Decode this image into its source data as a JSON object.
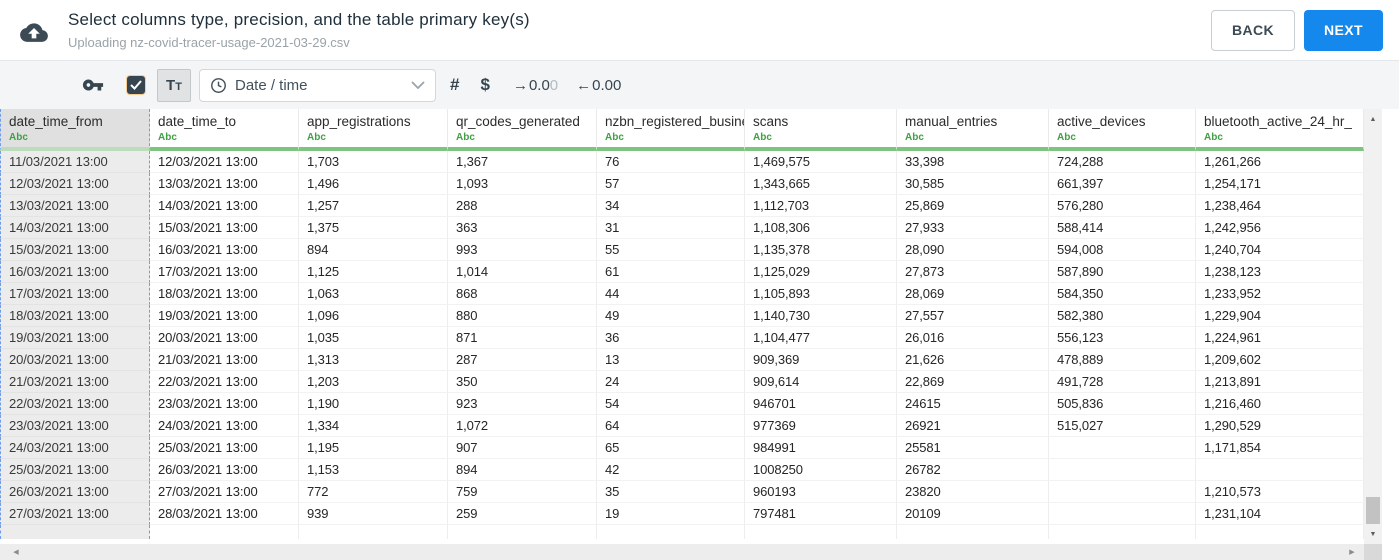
{
  "header": {
    "title": "Select columns type, precision, and the table primary key(s)",
    "subtitle": "Uploading nz-covid-tracer-usage-2021-03-29.csv",
    "back_label": "BACK",
    "next_label": "NEXT"
  },
  "toolbar": {
    "text_type_label": "Tt",
    "type_dropdown_value": "Date / time",
    "number_symbol": "#",
    "currency_symbol": "$",
    "decrease_decimals": {
      "arrow": "→",
      "main": "0.0",
      "dim": "0"
    },
    "increase_decimals": {
      "arrow": "←",
      "main": "0.00",
      "dim": ""
    }
  },
  "colors": {
    "next_button": "#1588ee",
    "type_label_green": "#3fa044",
    "header_underline_green": "#7cc47f",
    "selected_column_bg": "#ececec",
    "selection_dash_blue": "#6d9eeb",
    "toolbar_bg": "#f3f5f6"
  },
  "table": {
    "widths": [
      150,
      149,
      149,
      149,
      148,
      152,
      152,
      147,
      168
    ],
    "columns": [
      {
        "name": "date_time_from",
        "type": "Abc",
        "selected": true
      },
      {
        "name": "date_time_to",
        "type": "Abc",
        "selected": false
      },
      {
        "name": "app_registrations",
        "type": "Abc",
        "selected": false
      },
      {
        "name": "qr_codes_generated",
        "type": "Abc",
        "selected": false
      },
      {
        "name": "nzbn_registered_busine",
        "type": "Abc",
        "selected": false
      },
      {
        "name": "scans",
        "type": "Abc",
        "selected": false
      },
      {
        "name": "manual_entries",
        "type": "Abc",
        "selected": false
      },
      {
        "name": "active_devices",
        "type": "Abc",
        "selected": false
      },
      {
        "name": "bluetooth_active_24_hr_",
        "type": "Abc",
        "selected": false
      }
    ],
    "rows": [
      [
        "11/03/2021 13:00",
        "12/03/2021 13:00",
        "1,703",
        "1,367",
        "76",
        "1,469,575",
        "33,398",
        "724,288",
        "1,261,266"
      ],
      [
        "12/03/2021 13:00",
        "13/03/2021 13:00",
        "1,496",
        "1,093",
        "57",
        "1,343,665",
        "30,585",
        "661,397",
        "1,254,171"
      ],
      [
        "13/03/2021 13:00",
        "14/03/2021 13:00",
        "1,257",
        "288",
        "34",
        "1,112,703",
        "25,869",
        "576,280",
        "1,238,464"
      ],
      [
        "14/03/2021 13:00",
        "15/03/2021 13:00",
        "1,375",
        "363",
        "31",
        "1,108,306",
        "27,933",
        "588,414",
        "1,242,956"
      ],
      [
        "15/03/2021 13:00",
        "16/03/2021 13:00",
        "894",
        "993",
        "55",
        "1,135,378",
        "28,090",
        "594,008",
        "1,240,704"
      ],
      [
        "16/03/2021 13:00",
        "17/03/2021 13:00",
        "1,125",
        "1,014",
        "61",
        "1,125,029",
        "27,873",
        "587,890",
        "1,238,123"
      ],
      [
        "17/03/2021 13:00",
        "18/03/2021 13:00",
        "1,063",
        "868",
        "44",
        "1,105,893",
        "28,069",
        "584,350",
        "1,233,952"
      ],
      [
        "18/03/2021 13:00",
        "19/03/2021 13:00",
        "1,096",
        "880",
        "49",
        "1,140,730",
        "27,557",
        "582,380",
        "1,229,904"
      ],
      [
        "19/03/2021 13:00",
        "20/03/2021 13:00",
        "1,035",
        "871",
        "36",
        "1,104,477",
        "26,016",
        "556,123",
        "1,224,961"
      ],
      [
        "20/03/2021 13:00",
        "21/03/2021 13:00",
        "1,313",
        "287",
        "13",
        "909,369",
        "21,626",
        "478,889",
        "1,209,602"
      ],
      [
        "21/03/2021 13:00",
        "22/03/2021 13:00",
        "1,203",
        "350",
        "24",
        "909,614",
        "22,869",
        "491,728",
        "1,213,891"
      ],
      [
        "22/03/2021 13:00",
        "23/03/2021 13:00",
        "1,190",
        "923",
        "54",
        "946701",
        "24615",
        "505,836",
        "1,216,460"
      ],
      [
        "23/03/2021 13:00",
        "24/03/2021 13:00",
        "1,334",
        "1,072",
        "64",
        "977369",
        "26921",
        "515,027",
        "1,290,529"
      ],
      [
        "24/03/2021 13:00",
        "25/03/2021 13:00",
        "1,195",
        "907",
        "65",
        "984991",
        "25581",
        "",
        "1,171,854"
      ],
      [
        "25/03/2021 13:00",
        "26/03/2021 13:00",
        "1,153",
        "894",
        "42",
        "1008250",
        "26782",
        "",
        ""
      ],
      [
        "26/03/2021 13:00",
        "27/03/2021 13:00",
        "772",
        "759",
        "35",
        "960193",
        "23820",
        "",
        "1,210,573"
      ],
      [
        "27/03/2021 13:00",
        "28/03/2021 13:00",
        "939",
        "259",
        "19",
        "797481",
        "20109",
        "",
        "1,231,104"
      ]
    ]
  }
}
